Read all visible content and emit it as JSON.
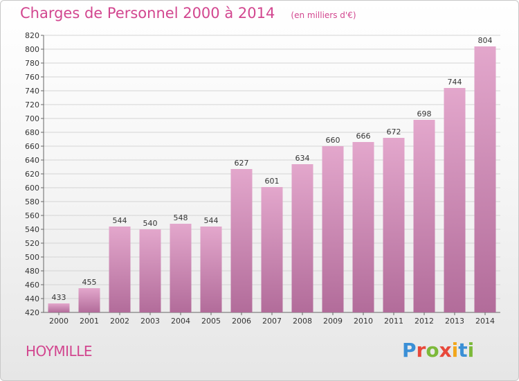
{
  "header": {
    "title": "Charges de Personnel 2000 à 2014",
    "subtitle": "(en milliers d'€)"
  },
  "commune": "HOYMILLE",
  "logo": {
    "letters": [
      "P",
      "r",
      "o",
      "x",
      "i",
      "t",
      "i"
    ],
    "colors": [
      "#3a8fd6",
      "#e8483a",
      "#7cb93a",
      "#e8483a",
      "#f2a61b",
      "#3a8fd6",
      "#7cb93a"
    ]
  },
  "colors": {
    "bar_top": "#e3a7cc",
    "bar_bottom": "#b26c9a",
    "title": "#d2468f"
  },
  "chart_data": {
    "type": "bar",
    "categories": [
      "2000",
      "2001",
      "2002",
      "2003",
      "2004",
      "2005",
      "2006",
      "2007",
      "2008",
      "2009",
      "2010",
      "2011",
      "2012",
      "2013",
      "2014"
    ],
    "values": [
      433,
      455,
      544,
      540,
      548,
      544,
      627,
      601,
      634,
      660,
      666,
      672,
      698,
      744,
      804
    ],
    "ylim": [
      420,
      820
    ],
    "yticks": [
      420,
      440,
      460,
      480,
      500,
      520,
      540,
      560,
      580,
      600,
      620,
      640,
      660,
      680,
      700,
      720,
      740,
      760,
      780,
      800,
      820
    ],
    "grid": true,
    "legend": "none"
  }
}
